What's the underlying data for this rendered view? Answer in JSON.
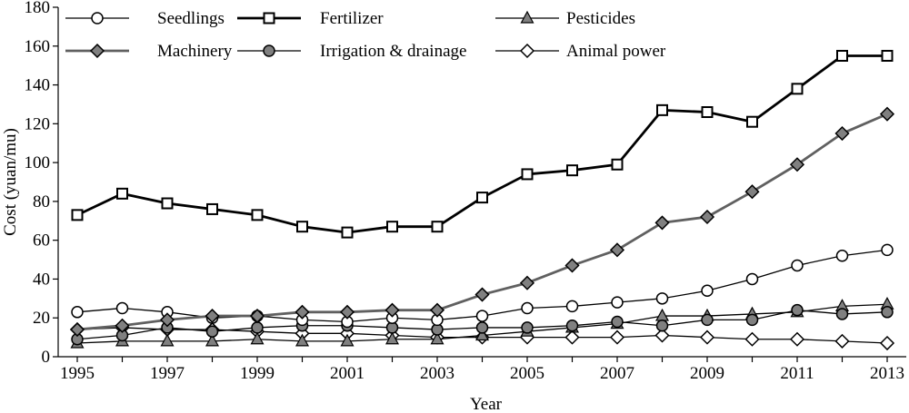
{
  "chart_data": {
    "type": "line",
    "title": "",
    "xlabel": "Year",
    "ylabel": "Cost (yuan/mu)",
    "xlim": [
      1995,
      2013
    ],
    "ylim": [
      0,
      180
    ],
    "x": [
      1995,
      1996,
      1997,
      1998,
      1999,
      2000,
      2001,
      2002,
      2003,
      2004,
      2005,
      2006,
      2007,
      2008,
      2009,
      2010,
      2011,
      2012,
      2013
    ],
    "x_ticks": [
      "1995",
      "1997",
      "1999",
      "2001",
      "2003",
      "2005",
      "2007",
      "2009",
      "2011",
      "2013"
    ],
    "y_ticks": [
      "0",
      "20",
      "40",
      "60",
      "80",
      "100",
      "120",
      "140",
      "160",
      "180"
    ],
    "grid": false,
    "legend_position": "top",
    "series": [
      {
        "name": "Seedlings",
        "marker": "circle-open",
        "color": "#000000",
        "values": [
          23,
          25,
          23,
          20,
          21,
          19,
          18,
          20,
          19,
          21,
          25,
          26,
          28,
          30,
          34,
          40,
          47,
          52,
          55
        ]
      },
      {
        "name": "Fertilizer",
        "marker": "square-open",
        "color": "#000000",
        "values": [
          73,
          84,
          79,
          76,
          73,
          67,
          64,
          67,
          67,
          82,
          94,
          96,
          99,
          127,
          126,
          121,
          138,
          155,
          155
        ]
      },
      {
        "name": "Pesticides",
        "marker": "triangle-gray",
        "color": "#000000",
        "values": [
          7,
          8,
          8,
          8,
          9,
          8,
          8,
          9,
          9,
          11,
          13,
          15,
          17,
          21,
          21,
          22,
          23,
          26,
          27
        ]
      },
      {
        "name": "Machinery",
        "marker": "diamond-gray",
        "color": "#606060",
        "values": [
          14,
          16,
          19,
          21,
          21,
          23,
          23,
          24,
          24,
          32,
          38,
          47,
          55,
          69,
          72,
          85,
          99,
          115,
          125
        ]
      },
      {
        "name": "Irrigation & drainage",
        "marker": "circle-gray",
        "color": "#000000",
        "values": [
          9,
          11,
          15,
          13,
          15,
          16,
          16,
          15,
          14,
          15,
          15,
          16,
          18,
          16,
          19,
          19,
          24,
          22,
          23
        ]
      },
      {
        "name": "Animal power",
        "marker": "diamond-open",
        "color": "#000000",
        "values": [
          14,
          15,
          14,
          14,
          13,
          12,
          12,
          11,
          10,
          10,
          10,
          10,
          10,
          11,
          10,
          9,
          9,
          8,
          7
        ]
      }
    ]
  }
}
